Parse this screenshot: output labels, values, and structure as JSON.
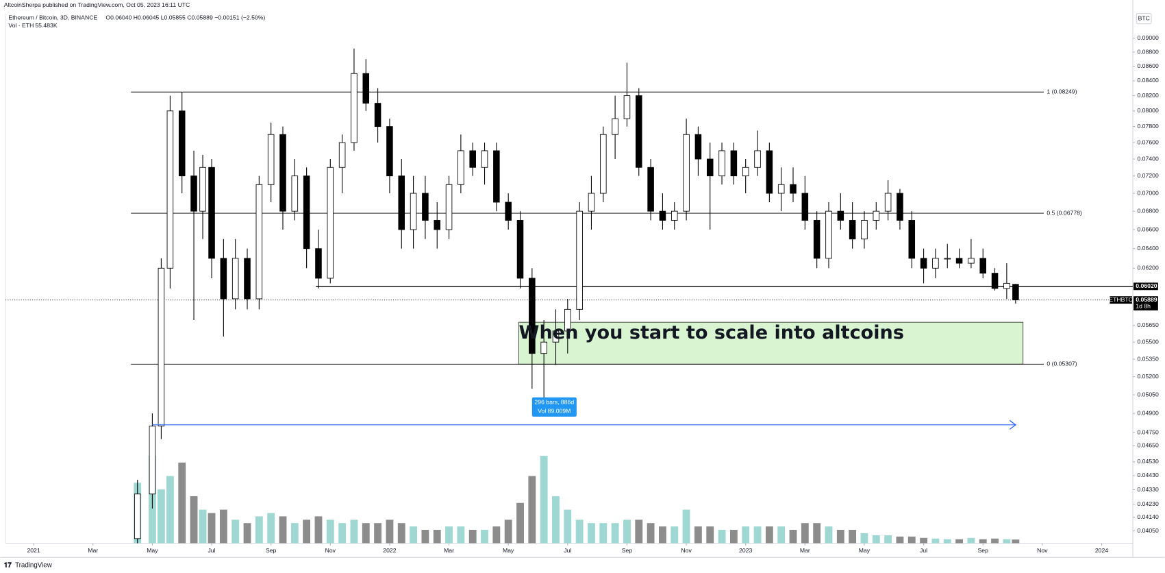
{
  "header": {
    "publisher": "AltcoinSherpa published on TradingView.com, Oct 05, 2023 16:11 UTC",
    "symbol": "Ethereum / Bitcoin, 3D, BINANCE",
    "ohlc": "O0.06040 H0.06045 L0.05855 C0.05889 −0.00151 (−2.50%)",
    "volume_label": "Vol · ETH",
    "volume_value": "55.483K",
    "currency": "BTC",
    "footer": "TradingView"
  },
  "chart_data": {
    "type": "candlestick",
    "log": true,
    "grid": false,
    "up_color": "#ffffff",
    "down_color": "#000000",
    "volume_up_color": "#9fd8d2",
    "volume_down_color": "#8c8c8c",
    "xlim": [
      -0.95,
      37.05
    ],
    "xticks": [
      {
        "value": 0,
        "label": "2021"
      },
      {
        "value": 2,
        "label": "Mar"
      },
      {
        "value": 4,
        "label": "May"
      },
      {
        "value": 6,
        "label": "Jul"
      },
      {
        "value": 8,
        "label": "Sep"
      },
      {
        "value": 10,
        "label": "Nov"
      },
      {
        "value": 12,
        "label": "2022"
      },
      {
        "value": 14,
        "label": "Mar"
      },
      {
        "value": 16,
        "label": "May"
      },
      {
        "value": 18,
        "label": "Jul"
      },
      {
        "value": 20,
        "label": "Sep"
      },
      {
        "value": 22,
        "label": "Nov"
      },
      {
        "value": 24,
        "label": "2023"
      },
      {
        "value": 26,
        "label": "Mar"
      },
      {
        "value": 28,
        "label": "May"
      },
      {
        "value": 30,
        "label": "Jul"
      },
      {
        "value": 32,
        "label": "Sep"
      },
      {
        "value": 34,
        "label": "Nov"
      },
      {
        "value": 36,
        "label": "2024"
      }
    ],
    "ylim": [
      0.0397,
      0.0937
    ],
    "yticks": [
      {
        "value": 0.09,
        "label": "0.09000"
      },
      {
        "value": 0.088,
        "label": "0.08800"
      },
      {
        "value": 0.086,
        "label": "0.08600"
      },
      {
        "value": 0.084,
        "label": "0.08400"
      },
      {
        "value": 0.082,
        "label": "0.08200"
      },
      {
        "value": 0.08,
        "label": "0.08000"
      },
      {
        "value": 0.078,
        "label": "0.07800"
      },
      {
        "value": 0.076,
        "label": "0.07600"
      },
      {
        "value": 0.074,
        "label": "0.07400"
      },
      {
        "value": 0.072,
        "label": "0.07200"
      },
      {
        "value": 0.07,
        "label": "0.07000"
      },
      {
        "value": 0.068,
        "label": "0.06800"
      },
      {
        "value": 0.066,
        "label": "0.06600"
      },
      {
        "value": 0.064,
        "label": "0.06400"
      },
      {
        "value": 0.062,
        "label": "0.06200"
      },
      {
        "value": 0.0565,
        "label": "0.05650"
      },
      {
        "value": 0.055,
        "label": "0.05500"
      },
      {
        "value": 0.0535,
        "label": "0.05350"
      },
      {
        "value": 0.052,
        "label": "0.05200"
      },
      {
        "value": 0.0505,
        "label": "0.05050"
      },
      {
        "value": 0.049,
        "label": "0.04900"
      },
      {
        "value": 0.0475,
        "label": "0.04750"
      },
      {
        "value": 0.0465,
        "label": "0.04650"
      },
      {
        "value": 0.0453,
        "label": "0.04530"
      },
      {
        "value": 0.0443,
        "label": "0.04430"
      },
      {
        "value": 0.0433,
        "label": "0.04330"
      },
      {
        "value": 0.0423,
        "label": "0.04230"
      },
      {
        "value": 0.0414,
        "label": "0.04140"
      },
      {
        "value": 0.0405,
        "label": "0.04050"
      }
    ],
    "vlim": [
      0,
      2000
    ],
    "candles": [
      {
        "t": 3.5,
        "o": 0.04,
        "h": 0.044,
        "l": 0.039,
        "c": 0.043,
        "v": 900
      },
      {
        "t": 4.0,
        "o": 0.043,
        "h": 0.049,
        "l": 0.042,
        "c": 0.048,
        "v": 1300
      },
      {
        "t": 4.3,
        "o": 0.048,
        "h": 0.063,
        "l": 0.047,
        "c": 0.062,
        "v": 800
      },
      {
        "t": 4.6,
        "o": 0.062,
        "h": 0.082,
        "l": 0.06,
        "c": 0.08,
        "v": 1000
      },
      {
        "t": 5.0,
        "o": 0.08,
        "h": 0.0825,
        "l": 0.07,
        "c": 0.072,
        "v": 1200
      },
      {
        "t": 5.4,
        "o": 0.072,
        "h": 0.075,
        "l": 0.057,
        "c": 0.068,
        "v": 700
      },
      {
        "t": 5.7,
        "o": 0.068,
        "h": 0.0745,
        "l": 0.065,
        "c": 0.073,
        "v": 500
      },
      {
        "t": 6.0,
        "o": 0.073,
        "h": 0.074,
        "l": 0.061,
        "c": 0.063,
        "v": 450
      },
      {
        "t": 6.4,
        "o": 0.063,
        "h": 0.065,
        "l": 0.0555,
        "c": 0.059,
        "v": 500
      },
      {
        "t": 6.8,
        "o": 0.059,
        "h": 0.065,
        "l": 0.058,
        "c": 0.063,
        "v": 350
      },
      {
        "t": 7.2,
        "o": 0.063,
        "h": 0.064,
        "l": 0.058,
        "c": 0.059,
        "v": 300
      },
      {
        "t": 7.6,
        "o": 0.059,
        "h": 0.072,
        "l": 0.058,
        "c": 0.071,
        "v": 400
      },
      {
        "t": 8.0,
        "o": 0.071,
        "h": 0.0785,
        "l": 0.069,
        "c": 0.077,
        "v": 450
      },
      {
        "t": 8.4,
        "o": 0.077,
        "h": 0.078,
        "l": 0.066,
        "c": 0.068,
        "v": 400
      },
      {
        "t": 8.8,
        "o": 0.068,
        "h": 0.074,
        "l": 0.067,
        "c": 0.072,
        "v": 300
      },
      {
        "t": 9.2,
        "o": 0.072,
        "h": 0.073,
        "l": 0.062,
        "c": 0.064,
        "v": 350
      },
      {
        "t": 9.6,
        "o": 0.064,
        "h": 0.066,
        "l": 0.06,
        "c": 0.061,
        "v": 400
      },
      {
        "t": 10.0,
        "o": 0.061,
        "h": 0.074,
        "l": 0.0605,
        "c": 0.073,
        "v": 350
      },
      {
        "t": 10.4,
        "o": 0.073,
        "h": 0.077,
        "l": 0.07,
        "c": 0.076,
        "v": 300
      },
      {
        "t": 10.8,
        "o": 0.076,
        "h": 0.0885,
        "l": 0.075,
        "c": 0.085,
        "v": 350
      },
      {
        "t": 11.2,
        "o": 0.085,
        "h": 0.087,
        "l": 0.08,
        "c": 0.081,
        "v": 300
      },
      {
        "t": 11.6,
        "o": 0.081,
        "h": 0.083,
        "l": 0.076,
        "c": 0.078,
        "v": 300
      },
      {
        "t": 12.0,
        "o": 0.078,
        "h": 0.079,
        "l": 0.07,
        "c": 0.072,
        "v": 350
      },
      {
        "t": 12.4,
        "o": 0.072,
        "h": 0.074,
        "l": 0.064,
        "c": 0.066,
        "v": 300
      },
      {
        "t": 12.8,
        "o": 0.066,
        "h": 0.072,
        "l": 0.064,
        "c": 0.07,
        "v": 250
      },
      {
        "t": 13.2,
        "o": 0.07,
        "h": 0.072,
        "l": 0.065,
        "c": 0.067,
        "v": 200
      },
      {
        "t": 13.6,
        "o": 0.067,
        "h": 0.069,
        "l": 0.064,
        "c": 0.066,
        "v": 200
      },
      {
        "t": 14.0,
        "o": 0.066,
        "h": 0.072,
        "l": 0.065,
        "c": 0.071,
        "v": 250
      },
      {
        "t": 14.4,
        "o": 0.071,
        "h": 0.077,
        "l": 0.07,
        "c": 0.075,
        "v": 250
      },
      {
        "t": 14.8,
        "o": 0.075,
        "h": 0.076,
        "l": 0.072,
        "c": 0.073,
        "v": 200
      },
      {
        "t": 15.2,
        "o": 0.073,
        "h": 0.076,
        "l": 0.071,
        "c": 0.075,
        "v": 200
      },
      {
        "t": 15.6,
        "o": 0.075,
        "h": 0.076,
        "l": 0.068,
        "c": 0.069,
        "v": 250
      },
      {
        "t": 16.0,
        "o": 0.069,
        "h": 0.07,
        "l": 0.066,
        "c": 0.067,
        "v": 350
      },
      {
        "t": 16.4,
        "o": 0.067,
        "h": 0.068,
        "l": 0.06,
        "c": 0.061,
        "v": 600
      },
      {
        "t": 16.8,
        "o": 0.061,
        "h": 0.062,
        "l": 0.051,
        "c": 0.054,
        "v": 1000
      },
      {
        "t": 17.2,
        "o": 0.054,
        "h": 0.057,
        "l": 0.049,
        "c": 0.055,
        "v": 1300
      },
      {
        "t": 17.6,
        "o": 0.055,
        "h": 0.058,
        "l": 0.053,
        "c": 0.056,
        "v": 700
      },
      {
        "t": 18.0,
        "o": 0.056,
        "h": 0.059,
        "l": 0.054,
        "c": 0.058,
        "v": 500
      },
      {
        "t": 18.4,
        "o": 0.058,
        "h": 0.069,
        "l": 0.057,
        "c": 0.068,
        "v": 350
      },
      {
        "t": 18.8,
        "o": 0.068,
        "h": 0.072,
        "l": 0.066,
        "c": 0.07,
        "v": 300
      },
      {
        "t": 19.2,
        "o": 0.07,
        "h": 0.078,
        "l": 0.069,
        "c": 0.077,
        "v": 300
      },
      {
        "t": 19.6,
        "o": 0.077,
        "h": 0.082,
        "l": 0.074,
        "c": 0.079,
        "v": 300
      },
      {
        "t": 20.0,
        "o": 0.079,
        "h": 0.0865,
        "l": 0.078,
        "c": 0.082,
        "v": 350
      },
      {
        "t": 20.4,
        "o": 0.082,
        "h": 0.083,
        "l": 0.072,
        "c": 0.073,
        "v": 350
      },
      {
        "t": 20.8,
        "o": 0.073,
        "h": 0.074,
        "l": 0.067,
        "c": 0.068,
        "v": 300
      },
      {
        "t": 21.2,
        "o": 0.068,
        "h": 0.07,
        "l": 0.066,
        "c": 0.067,
        "v": 250
      },
      {
        "t": 21.6,
        "o": 0.067,
        "h": 0.069,
        "l": 0.066,
        "c": 0.068,
        "v": 250
      },
      {
        "t": 22.0,
        "o": 0.068,
        "h": 0.079,
        "l": 0.067,
        "c": 0.077,
        "v": 500
      },
      {
        "t": 22.4,
        "o": 0.077,
        "h": 0.078,
        "l": 0.072,
        "c": 0.074,
        "v": 250
      },
      {
        "t": 22.8,
        "o": 0.074,
        "h": 0.076,
        "l": 0.066,
        "c": 0.072,
        "v": 250
      },
      {
        "t": 23.2,
        "o": 0.072,
        "h": 0.076,
        "l": 0.071,
        "c": 0.075,
        "v": 200
      },
      {
        "t": 23.6,
        "o": 0.075,
        "h": 0.076,
        "l": 0.071,
        "c": 0.072,
        "v": 200
      },
      {
        "t": 24.0,
        "o": 0.072,
        "h": 0.074,
        "l": 0.07,
        "c": 0.073,
        "v": 250
      },
      {
        "t": 24.4,
        "o": 0.073,
        "h": 0.0775,
        "l": 0.072,
        "c": 0.075,
        "v": 250
      },
      {
        "t": 24.8,
        "o": 0.075,
        "h": 0.076,
        "l": 0.069,
        "c": 0.07,
        "v": 250
      },
      {
        "t": 25.2,
        "o": 0.07,
        "h": 0.073,
        "l": 0.068,
        "c": 0.071,
        "v": 250
      },
      {
        "t": 25.6,
        "o": 0.071,
        "h": 0.073,
        "l": 0.069,
        "c": 0.07,
        "v": 200
      },
      {
        "t": 26.0,
        "o": 0.07,
        "h": 0.072,
        "l": 0.066,
        "c": 0.067,
        "v": 300
      },
      {
        "t": 26.4,
        "o": 0.067,
        "h": 0.068,
        "l": 0.062,
        "c": 0.063,
        "v": 300
      },
      {
        "t": 26.8,
        "o": 0.063,
        "h": 0.069,
        "l": 0.062,
        "c": 0.068,
        "v": 250
      },
      {
        "t": 27.2,
        "o": 0.068,
        "h": 0.07,
        "l": 0.066,
        "c": 0.067,
        "v": 200
      },
      {
        "t": 27.6,
        "o": 0.067,
        "h": 0.069,
        "l": 0.064,
        "c": 0.065,
        "v": 200
      },
      {
        "t": 28.0,
        "o": 0.065,
        "h": 0.068,
        "l": 0.064,
        "c": 0.067,
        "v": 150
      },
      {
        "t": 28.4,
        "o": 0.067,
        "h": 0.069,
        "l": 0.066,
        "c": 0.068,
        "v": 120
      },
      {
        "t": 28.8,
        "o": 0.068,
        "h": 0.0715,
        "l": 0.067,
        "c": 0.07,
        "v": 120
      },
      {
        "t": 29.2,
        "o": 0.07,
        "h": 0.0705,
        "l": 0.066,
        "c": 0.067,
        "v": 100
      },
      {
        "t": 29.6,
        "o": 0.067,
        "h": 0.068,
        "l": 0.062,
        "c": 0.063,
        "v": 100
      },
      {
        "t": 30.0,
        "o": 0.063,
        "h": 0.064,
        "l": 0.0605,
        "c": 0.062,
        "v": 80
      },
      {
        "t": 30.4,
        "o": 0.062,
        "h": 0.064,
        "l": 0.061,
        "c": 0.063,
        "v": 70
      },
      {
        "t": 30.8,
        "o": 0.063,
        "h": 0.0645,
        "l": 0.062,
        "c": 0.063,
        "v": 60
      },
      {
        "t": 31.2,
        "o": 0.063,
        "h": 0.064,
        "l": 0.062,
        "c": 0.0625,
        "v": 60
      },
      {
        "t": 31.6,
        "o": 0.0625,
        "h": 0.065,
        "l": 0.062,
        "c": 0.063,
        "v": 80
      },
      {
        "t": 32.0,
        "o": 0.063,
        "h": 0.064,
        "l": 0.061,
        "c": 0.0615,
        "v": 60
      },
      {
        "t": 32.4,
        "o": 0.0615,
        "h": 0.062,
        "l": 0.0598,
        "c": 0.06,
        "v": 70
      },
      {
        "t": 32.8,
        "o": 0.06,
        "h": 0.0625,
        "l": 0.059,
        "c": 0.0605,
        "v": 60
      },
      {
        "t": 33.1,
        "o": 0.0604,
        "h": 0.06045,
        "l": 0.05855,
        "c": 0.05889,
        "v": 55.483
      }
    ],
    "fib": {
      "start": 3.28,
      "end": 34.05,
      "levels": [
        {
          "value": 0.08249,
          "label": "1 (0.08249)"
        },
        {
          "value": 0.06778,
          "label": "0.5 (0.06778)"
        },
        {
          "value": 0.05307,
          "label": "0 (0.05307)"
        }
      ]
    },
    "support": {
      "start": 9.51,
      "value": 0.0602,
      "label": "0.06020"
    },
    "last_price": {
      "value": 0.05889,
      "label": "0.05889",
      "symbol": "ETHBTC",
      "countdown": "1d 8h"
    },
    "zone": {
      "start": 16.35,
      "end": 33.35,
      "top": 0.0568,
      "bottom": 0.05307,
      "text": "When you start to scale into altcoins"
    },
    "measure": {
      "start": 4.0,
      "end": 33.1,
      "value": 0.0481,
      "labels": [
        "296 bars, 886d",
        "Vol 89.009M"
      ]
    }
  }
}
